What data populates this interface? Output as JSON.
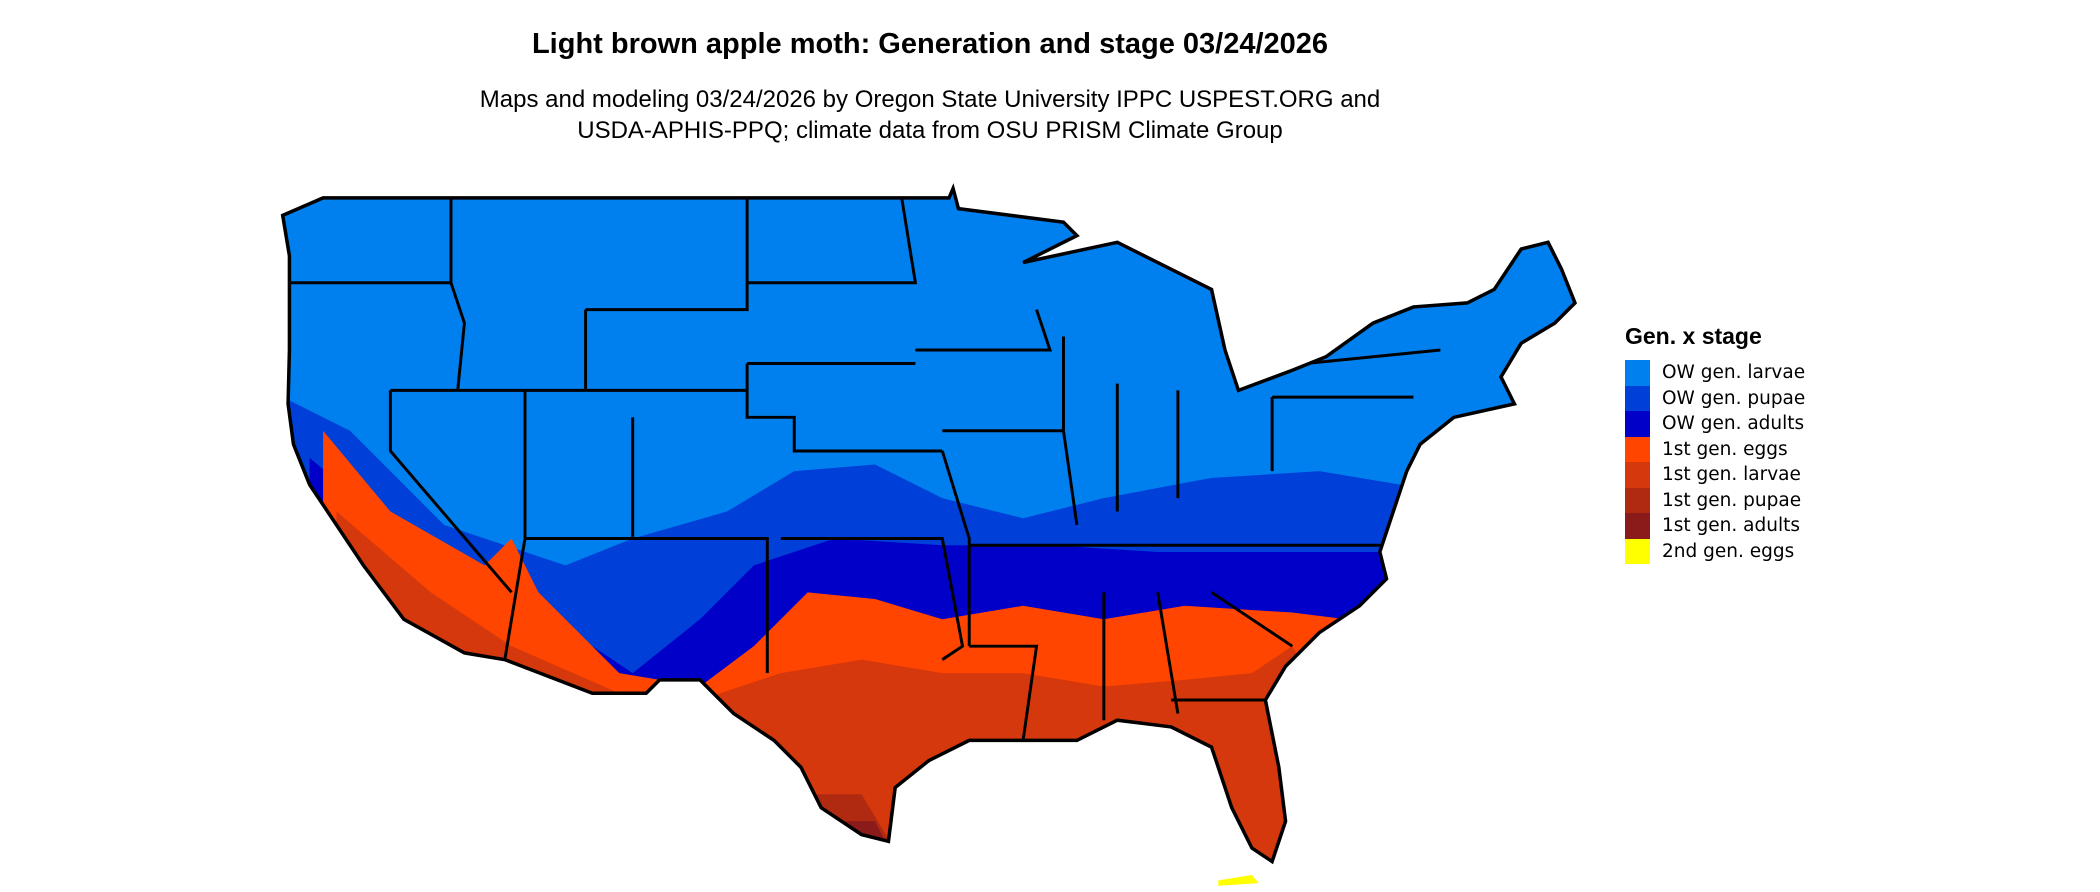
{
  "title": "Light brown apple moth: Generation and stage 03/24/2026",
  "subtitle_line1": "Maps and modeling 03/24/2026 by Oregon State University IPPC USPEST.ORG and",
  "subtitle_line2": "USDA-APHIS-PPQ; climate data from OSU PRISM Climate Group",
  "legend": {
    "title": "Gen. x stage",
    "items": [
      {
        "label": "OW gen. larvae",
        "color": "#0080EE"
      },
      {
        "label": "OW gen. pupae",
        "color": "#0040D8"
      },
      {
        "label": "OW gen. adults",
        "color": "#0000C8"
      },
      {
        "label": "1st gen. eggs",
        "color": "#FF4500"
      },
      {
        "label": "1st gen. larvae",
        "color": "#D5380C"
      },
      {
        "label": "1st gen. pupae",
        "color": "#B02A12"
      },
      {
        "label": "1st gen. adults",
        "color": "#8B1A1A"
      },
      {
        "label": "2nd gen. eggs",
        "color": "#FFFF00"
      }
    ]
  }
}
